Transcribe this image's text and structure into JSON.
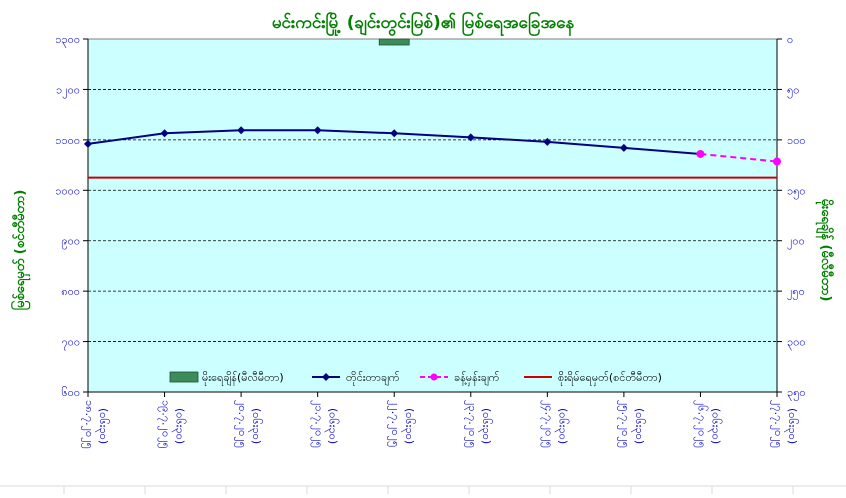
{
  "chart_data": {
    "type": "line",
    "title": "မင်းကင်းမြို့ (ချင်းတွင်းမြစ်)၏ မြစ်ရေအခြေအနေ",
    "ylabel_left": "မြစ်ရေမှတ် (စင်တီမီတာ)",
    "ylabel_right": "မိုးရေချိန် (မီလီမီတာ)",
    "y_left": {
      "min": 600,
      "max": 1300,
      "ticks": [
        "၆၀၀",
        "၇၀၀",
        "၈၀၀",
        "၉၀၀",
        "၁၀၀၀",
        "၁၁၀၀",
        "၁၂၀၀",
        "၁၃၀၀"
      ]
    },
    "y_right": {
      "min": 0,
      "max": 350,
      "inverted": true,
      "ticks": [
        "၀",
        "၅၀",
        "၁၀၀",
        "၁၅၀",
        "၂၀၀",
        "၂၅၀",
        "၃၀၀",
        "၃၅၀"
      ]
    },
    "x_labels": [
      [
        "၁၈.၇.၂၀၂၅",
        "(၀၆း၃၀)"
      ],
      [
        "၁၉.၇.၂၀၂၅",
        "(၀၆း၃၀)"
      ],
      [
        "၂၀.၇.၂၀၂၅",
        "(၀၆း၃၀)"
      ],
      [
        "၂၁.၇.၂၀၂၅",
        "(၀၆း၃၀)"
      ],
      [
        "၂၂.၇.၂၀၂၅",
        "(၀၆း၃၀)"
      ],
      [
        "၂၃.၇.၂၀၂၅",
        "(၀၆း၃၀)"
      ],
      [
        "၂၄.၇.၂၀၂၅",
        "(၀၆း၃၀)"
      ],
      [
        "၂၅.၇.၂၀၂၅",
        "(၀၆း၃၀)"
      ],
      [
        "၂၆.၇.၂၀၂၅",
        "(၀၆း၃၀)"
      ],
      [
        "၂၇.၇.၂၀၂၅",
        "(၀၆း၃၀)"
      ]
    ],
    "series": [
      {
        "name": "တိုင်းတာချက်",
        "kind": "line",
        "color": "#000080",
        "values": [
          1092,
          1113,
          1119,
          1119,
          1113,
          1105,
          1096,
          1084,
          1072,
          null
        ]
      },
      {
        "name": "ခန့်မှန်းချက်",
        "kind": "dashed-line",
        "color": "#ff00ff",
        "values": [
          null,
          null,
          null,
          null,
          null,
          null,
          null,
          null,
          1072,
          1057
        ]
      },
      {
        "name": "စိုးရိမ်ရေမှတ်(စင်တီမီတာ)",
        "kind": "hline",
        "color": "#cc0000",
        "value": 1025
      },
      {
        "name": "မိုးရေချိန်(မီလီမီတာ)",
        "kind": "bar",
        "axis": "right",
        "color": "#3c8c5a",
        "values": [
          null,
          null,
          null,
          null,
          1,
          null,
          null,
          null,
          null,
          null
        ]
      }
    ],
    "grid": true,
    "legend": "bottom"
  },
  "colors": {
    "plot_bg": "#ccffff",
    "title": "#008000",
    "axis_text": "#0000cc",
    "axis_title": "#008000",
    "gridline": "#000000"
  }
}
